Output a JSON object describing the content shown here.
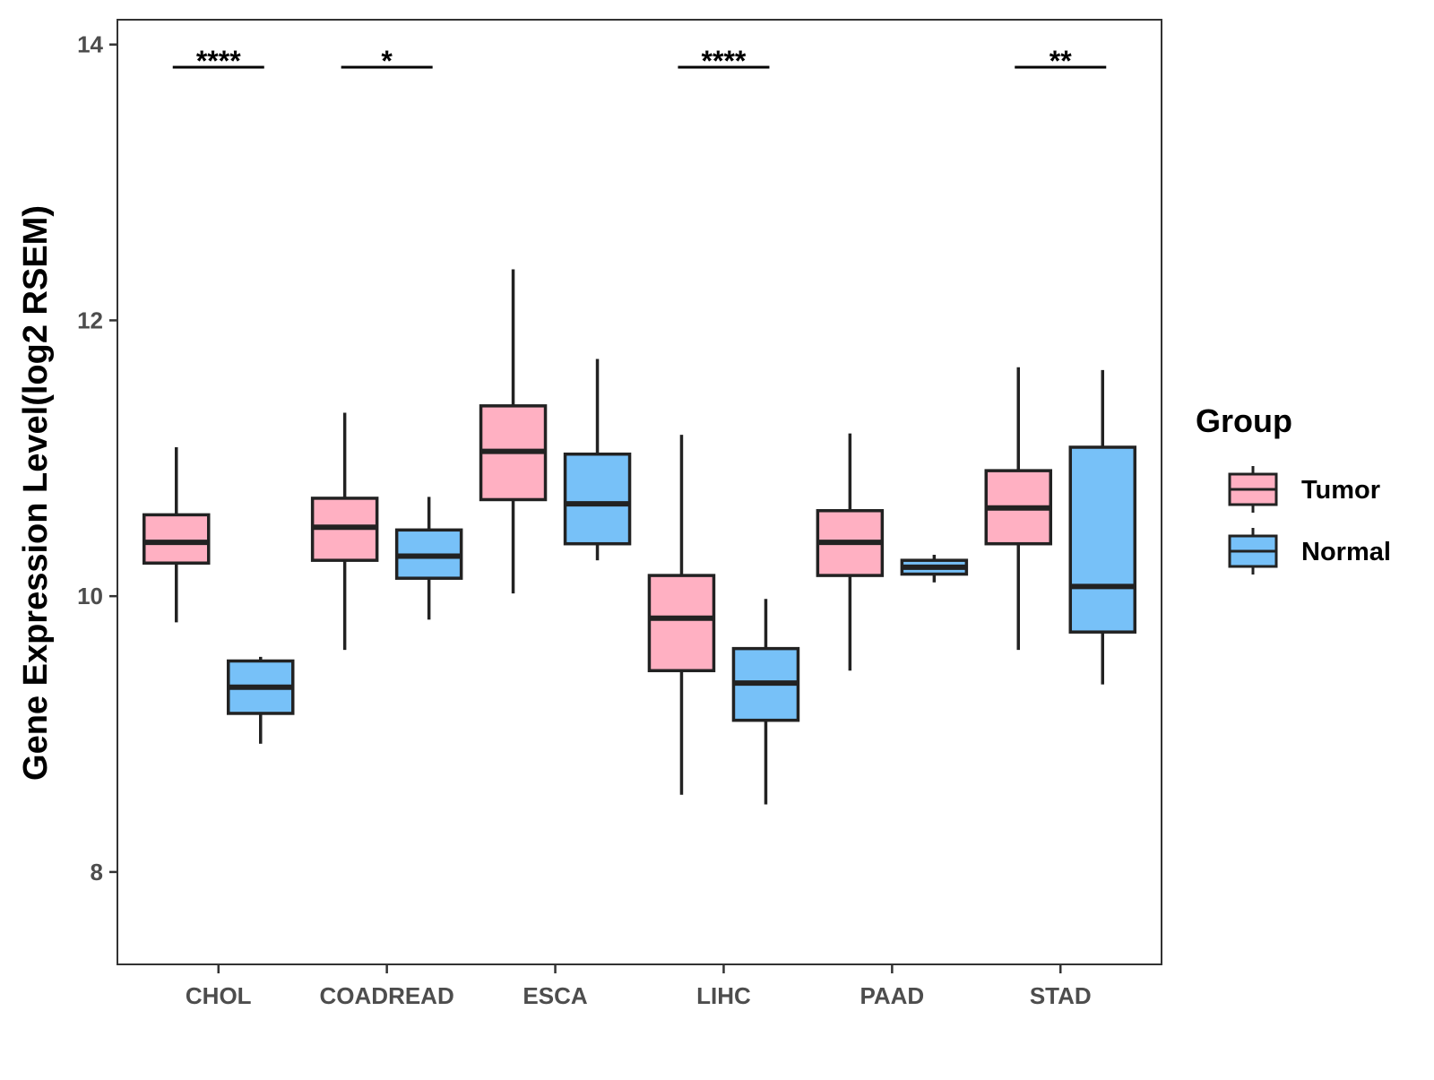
{
  "chart_data": {
    "type": "box",
    "title": "",
    "xlabel": "",
    "ylabel": "Gene Expression Level(log2 RSEM)",
    "categories": [
      "CHOL",
      "COADREAD",
      "ESCA",
      "LIHC",
      "PAAD",
      "STAD"
    ],
    "ylim": [
      7.33,
      14.18
    ],
    "yticks": [
      8,
      10,
      12,
      14
    ],
    "grid": false,
    "legend": {
      "title": "Group",
      "placement": "right",
      "entries": [
        "Tumor",
        "Normal"
      ]
    },
    "colors": {
      "Tumor": "#FFB0C2",
      "Normal": "#77C1F8",
      "outline": "#222222"
    },
    "series": [
      {
        "name": "Tumor",
        "boxes": [
          {
            "category": "CHOL",
            "min": 9.81,
            "q1": 10.24,
            "median": 10.39,
            "q3": 10.59,
            "max": 11.08
          },
          {
            "category": "COADREAD",
            "min": 9.61,
            "q1": 10.26,
            "median": 10.5,
            "q3": 10.71,
            "max": 11.33
          },
          {
            "category": "ESCA",
            "min": 10.02,
            "q1": 10.7,
            "median": 11.05,
            "q3": 11.38,
            "max": 12.37
          },
          {
            "category": "LIHC",
            "min": 8.56,
            "q1": 9.46,
            "median": 9.84,
            "q3": 10.15,
            "max": 11.17
          },
          {
            "category": "PAAD",
            "min": 9.46,
            "q1": 10.15,
            "median": 10.39,
            "q3": 10.62,
            "max": 11.18
          },
          {
            "category": "STAD",
            "min": 9.61,
            "q1": 10.38,
            "median": 10.64,
            "q3": 10.91,
            "max": 11.66
          }
        ]
      },
      {
        "name": "Normal",
        "boxes": [
          {
            "category": "CHOL",
            "min": 8.93,
            "q1": 9.15,
            "median": 9.34,
            "q3": 9.53,
            "max": 9.56
          },
          {
            "category": "COADREAD",
            "min": 9.83,
            "q1": 10.13,
            "median": 10.29,
            "q3": 10.48,
            "max": 10.72
          },
          {
            "category": "ESCA",
            "min": 10.26,
            "q1": 10.38,
            "median": 10.67,
            "q3": 11.03,
            "max": 11.72
          },
          {
            "category": "LIHC",
            "min": 8.49,
            "q1": 9.1,
            "median": 9.37,
            "q3": 9.62,
            "max": 9.98
          },
          {
            "category": "PAAD",
            "min": 10.1,
            "q1": 10.16,
            "median": 10.21,
            "q3": 10.26,
            "max": 10.3
          },
          {
            "category": "STAD",
            "min": 9.36,
            "q1": 9.74,
            "median": 10.07,
            "q3": 11.08,
            "max": 11.64
          }
        ]
      }
    ],
    "annotations": [
      {
        "category": "CHOL",
        "label": "****"
      },
      {
        "category": "COADREAD",
        "label": "*"
      },
      {
        "category": "LIHC",
        "label": "****"
      },
      {
        "category": "STAD",
        "label": "**"
      }
    ]
  }
}
